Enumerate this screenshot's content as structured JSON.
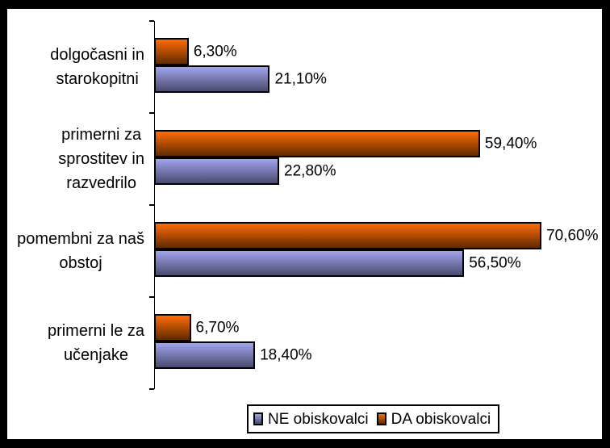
{
  "chart_data": {
    "type": "bar",
    "orientation": "horizontal",
    "title": "",
    "xlabel": "",
    "ylabel": "",
    "grid": false,
    "xlim": [
      0,
      80
    ],
    "value_axis_visible": false,
    "categories": [
      "dolgočasni in starokopitni",
      "primerni za sprostitev in razvedrilo",
      "pomembni za naš obstoj",
      "primerni le za učenjake"
    ],
    "category_label_lines": [
      [
        "dolgočasni in",
        "starokopitni"
      ],
      [
        "primerni za",
        "sprostitev in",
        "razvedrilo"
      ],
      [
        "pomembni za naš",
        "obstoj"
      ],
      [
        "primerni le za",
        "učenjake"
      ]
    ],
    "series": [
      {
        "name": "NE obiskovalci",
        "values": [
          21.1,
          22.8,
          56.5,
          18.4
        ],
        "value_labels": [
          "21,10%",
          "22,80%",
          "56,50%",
          "18,40%"
        ],
        "color_top": "#a0a4ee",
        "color_bottom": "#4a4a6e",
        "key": "ne"
      },
      {
        "name": "DA obiskovalci",
        "values": [
          6.3,
          59.4,
          70.6,
          6.7
        ],
        "value_labels": [
          "6,30%",
          "59,40%",
          "70,60%",
          "6,70%"
        ],
        "color_top": "#ff6c04",
        "color_bottom": "#5f2a00",
        "key": "da"
      }
    ],
    "legend_position": "bottom",
    "legend": [
      {
        "label": "NE obiskovalci",
        "key": "ne"
      },
      {
        "label": "DA obiskovalci",
        "key": "da"
      }
    ]
  },
  "colors": {
    "frame": "#000000",
    "background": "#ffffff",
    "axis": "#000000",
    "bar_outline": "#000000",
    "text": "#000000"
  }
}
